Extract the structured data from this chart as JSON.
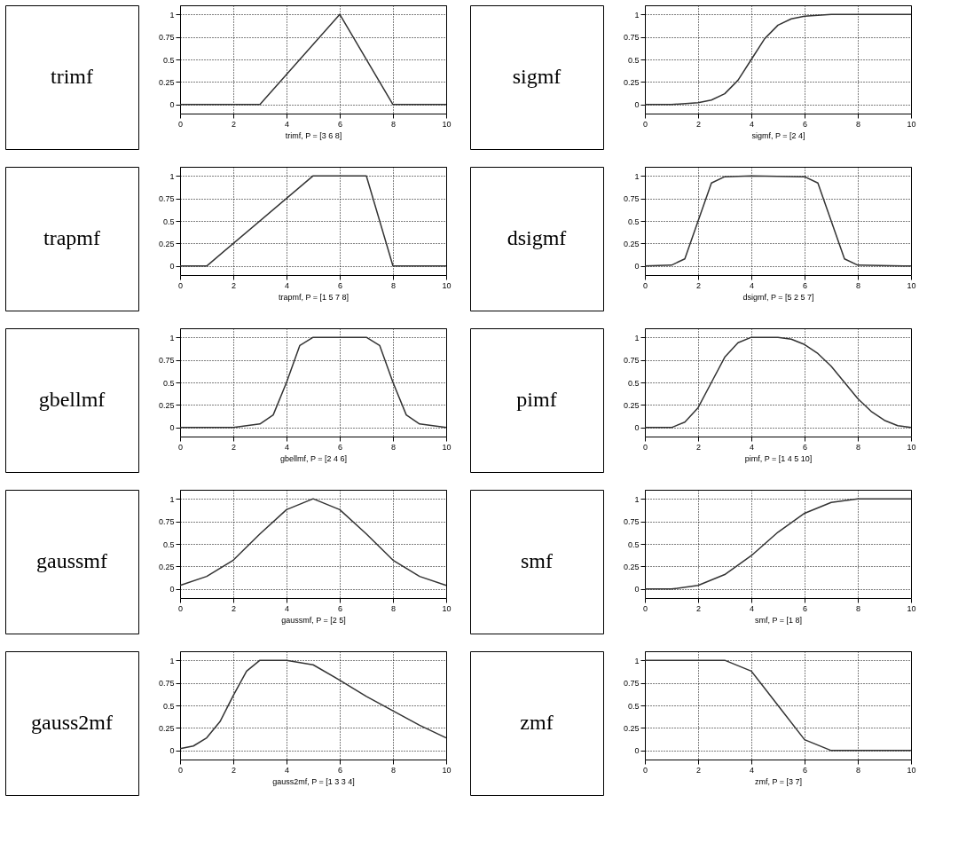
{
  "chart_data": [
    {
      "type": "other",
      "title": "trimf"
    },
    {
      "type": "line",
      "xlabel": "trimf, P = [3 6 8]",
      "x": [
        0,
        3,
        6,
        8,
        10
      ],
      "values": [
        0,
        0,
        1,
        0,
        0
      ],
      "color": "#333333",
      "xlim": [
        0,
        10
      ],
      "ylim": [
        -0.1,
        1.1
      ],
      "xticks": [
        0,
        2,
        4,
        6,
        8,
        10
      ],
      "yticks": [
        0,
        0.25,
        0.5,
        0.75,
        1
      ],
      "grid": true,
      "line_style": "solid"
    },
    {
      "type": "other",
      "title": "sigmf"
    },
    {
      "type": "line",
      "xlabel": "sigmf, P = [2 4]",
      "x": [
        0,
        1,
        2,
        2.5,
        3,
        3.5,
        4,
        4.5,
        5,
        5.5,
        6,
        7,
        8,
        10
      ],
      "values": [
        0,
        0,
        0.02,
        0.05,
        0.12,
        0.27,
        0.5,
        0.73,
        0.88,
        0.95,
        0.98,
        1,
        1,
        1
      ],
      "color": "#333333",
      "xlim": [
        0,
        10
      ],
      "ylim": [
        -0.1,
        1.1
      ],
      "xticks": [
        0,
        2,
        4,
        6,
        8,
        10
      ],
      "yticks": [
        0,
        0.25,
        0.5,
        0.75,
        1
      ],
      "grid": true,
      "line_style": "solid"
    },
    {
      "type": "other",
      "title": "trapmf"
    },
    {
      "type": "line",
      "xlabel": "trapmf, P = [1 5 7 8]",
      "x": [
        0,
        1,
        5,
        7,
        8,
        10
      ],
      "values": [
        0,
        0,
        1,
        1,
        0,
        0
      ],
      "color": "#333333",
      "xlim": [
        0,
        10
      ],
      "ylim": [
        -0.1,
        1.1
      ],
      "xticks": [
        0,
        2,
        4,
        6,
        8,
        10
      ],
      "yticks": [
        0,
        0.25,
        0.5,
        0.75,
        1
      ],
      "grid": true,
      "line_style": "solid"
    },
    {
      "type": "other",
      "title": "dsigmf"
    },
    {
      "type": "line",
      "xlabel": "dsigmf, P = [5 2 5 7]",
      "x": [
        0,
        1,
        1.5,
        2,
        2.5,
        3,
        4,
        6,
        6.5,
        7,
        7.5,
        8,
        10
      ],
      "values": [
        0,
        0.01,
        0.08,
        0.5,
        0.92,
        0.99,
        1,
        0.99,
        0.92,
        0.5,
        0.08,
        0.01,
        0
      ],
      "color": "#333333",
      "xlim": [
        0,
        10
      ],
      "ylim": [
        -0.1,
        1.1
      ],
      "xticks": [
        0,
        2,
        4,
        6,
        8,
        10
      ],
      "yticks": [
        0,
        0.25,
        0.5,
        0.75,
        1
      ],
      "grid": true,
      "line_style": "solid"
    },
    {
      "type": "other",
      "title": "gbellmf"
    },
    {
      "type": "line",
      "xlabel": "gbellmf, P = [2 4 6]",
      "x": [
        0,
        2,
        3,
        3.5,
        4,
        4.5,
        5,
        6,
        7,
        7.5,
        8,
        8.5,
        9,
        10
      ],
      "values": [
        0,
        0,
        0.04,
        0.14,
        0.5,
        0.91,
        1,
        1,
        1,
        0.91,
        0.5,
        0.14,
        0.04,
        0
      ],
      "color": "#333333",
      "xlim": [
        0,
        10
      ],
      "ylim": [
        -0.1,
        1.1
      ],
      "xticks": [
        0,
        2,
        4,
        6,
        8,
        10
      ],
      "yticks": [
        0,
        0.25,
        0.5,
        0.75,
        1
      ],
      "grid": true,
      "line_style": "solid"
    },
    {
      "type": "other",
      "title": "pimf"
    },
    {
      "type": "line",
      "xlabel": "pimf, P = [1 4 5 10]",
      "x": [
        0,
        1,
        1.5,
        2,
        2.5,
        3,
        3.5,
        4,
        5,
        5.5,
        6,
        6.5,
        7,
        7.5,
        8,
        8.5,
        9,
        9.5,
        10
      ],
      "values": [
        0,
        0,
        0.06,
        0.22,
        0.5,
        0.78,
        0.94,
        1,
        1,
        0.98,
        0.92,
        0.82,
        0.68,
        0.5,
        0.32,
        0.18,
        0.08,
        0.02,
        0
      ],
      "color": "#333333",
      "xlim": [
        0,
        10
      ],
      "ylim": [
        -0.1,
        1.1
      ],
      "xticks": [
        0,
        2,
        4,
        6,
        8,
        10
      ],
      "yticks": [
        0,
        0.25,
        0.5,
        0.75,
        1
      ],
      "grid": true,
      "line_style": "solid"
    },
    {
      "type": "other",
      "title": "gaussmf"
    },
    {
      "type": "line",
      "xlabel": "gaussmf, P = [2 5]",
      "x": [
        0,
        1,
        2,
        3,
        4,
        5,
        6,
        7,
        8,
        9,
        10
      ],
      "values": [
        0.04,
        0.14,
        0.32,
        0.61,
        0.88,
        1,
        0.88,
        0.61,
        0.32,
        0.14,
        0.04
      ],
      "color": "#333333",
      "xlim": [
        0,
        10
      ],
      "ylim": [
        -0.1,
        1.1
      ],
      "xticks": [
        0,
        2,
        4,
        6,
        8,
        10
      ],
      "yticks": [
        0,
        0.25,
        0.5,
        0.75,
        1
      ],
      "grid": true,
      "line_style": "solid"
    },
    {
      "type": "other",
      "title": "smf"
    },
    {
      "type": "line",
      "xlabel": "smf, P = [1 8]",
      "x": [
        0,
        1,
        2,
        3,
        4,
        4.5,
        5,
        6,
        7,
        8,
        10
      ],
      "values": [
        0,
        0,
        0.04,
        0.16,
        0.37,
        0.5,
        0.63,
        0.84,
        0.96,
        1,
        1
      ],
      "color": "#333333",
      "xlim": [
        0,
        10
      ],
      "ylim": [
        -0.1,
        1.1
      ],
      "xticks": [
        0,
        2,
        4,
        6,
        8,
        10
      ],
      "yticks": [
        0,
        0.25,
        0.5,
        0.75,
        1
      ],
      "grid": true,
      "line_style": "solid"
    },
    {
      "type": "other",
      "title": "gauss2mf"
    },
    {
      "type": "line",
      "xlabel": "gauss2mf, P = [1 3 3 4]",
      "x": [
        0,
        0.5,
        1,
        1.5,
        2,
        2.5,
        3,
        4,
        5,
        6,
        7,
        8,
        9,
        10
      ],
      "values": [
        0.02,
        0.05,
        0.14,
        0.32,
        0.61,
        0.88,
        1,
        1,
        0.95,
        0.78,
        0.6,
        0.44,
        0.28,
        0.14
      ],
      "color": "#333333",
      "xlim": [
        0,
        10
      ],
      "ylim": [
        -0.1,
        1.1
      ],
      "xticks": [
        0,
        2,
        4,
        6,
        8,
        10
      ],
      "yticks": [
        0,
        0.25,
        0.5,
        0.75,
        1
      ],
      "grid": true,
      "line_style": "solid"
    },
    {
      "type": "other",
      "title": "zmf"
    },
    {
      "type": "line",
      "xlabel": "zmf, P = [3 7]",
      "x": [
        0,
        3,
        4,
        5,
        6,
        7,
        10
      ],
      "values": [
        1,
        1,
        0.88,
        0.5,
        0.12,
        0,
        0
      ],
      "color": "#333333",
      "xlim": [
        0,
        10
      ],
      "ylim": [
        -0.1,
        1.1
      ],
      "xticks": [
        0,
        2,
        4,
        6,
        8,
        10
      ],
      "yticks": [
        0,
        0.25,
        0.5,
        0.75,
        1
      ],
      "grid": true,
      "line_style": "solid"
    }
  ]
}
